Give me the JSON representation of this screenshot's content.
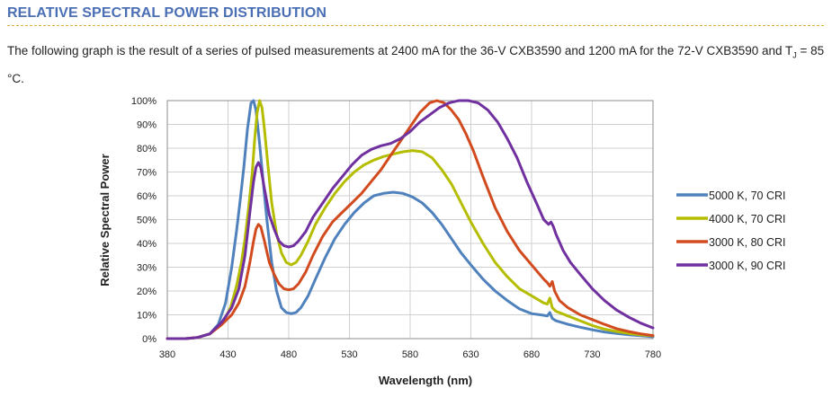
{
  "section": {
    "title": "RELATIVE SPECTRAL POWER DISTRIBUTION",
    "intro_main": "The following graph is the result of a series of pulsed measurements at 2400 mA for the 36-V CXB3590 and 1200 mA for the 72-V CXB3590 and T",
    "intro_sub": "J",
    "intro_end": " = 85 °C."
  },
  "colors": {
    "title": "#4a6fb5",
    "rule": "#d9b43a"
  },
  "chart_data": {
    "type": "line",
    "xlabel": "Wavelength (nm)",
    "ylabel": "Relative Spectral Power",
    "xlim": [
      380,
      780
    ],
    "ylim": [
      0,
      100
    ],
    "xticks": [
      380,
      430,
      480,
      530,
      580,
      630,
      680,
      730,
      780
    ],
    "yticks": [
      0,
      10,
      20,
      30,
      40,
      50,
      60,
      70,
      80,
      90,
      100
    ],
    "yticks_suffix": "%",
    "grid": true,
    "legend_position": "right",
    "series": [
      {
        "name": "5000 K, 70 CRI",
        "color": "#4f81bd",
        "points": [
          [
            380,
            0
          ],
          [
            395,
            0
          ],
          [
            405,
            0.5
          ],
          [
            415,
            2
          ],
          [
            422,
            6
          ],
          [
            428,
            15
          ],
          [
            433,
            30
          ],
          [
            437,
            45
          ],
          [
            440,
            58
          ],
          [
            443,
            72
          ],
          [
            446,
            88
          ],
          [
            449,
            99
          ],
          [
            451,
            100
          ],
          [
            453,
            96
          ],
          [
            456,
            82
          ],
          [
            459,
            66
          ],
          [
            462,
            50
          ],
          [
            466,
            32
          ],
          [
            470,
            20
          ],
          [
            474,
            13
          ],
          [
            478,
            11
          ],
          [
            482,
            10.5
          ],
          [
            486,
            11
          ],
          [
            490,
            13
          ],
          [
            496,
            18
          ],
          [
            502,
            25
          ],
          [
            510,
            34
          ],
          [
            518,
            42
          ],
          [
            526,
            48
          ],
          [
            534,
            53
          ],
          [
            542,
            57
          ],
          [
            550,
            60
          ],
          [
            558,
            61
          ],
          [
            566,
            61.5
          ],
          [
            574,
            61
          ],
          [
            582,
            59.5
          ],
          [
            590,
            57
          ],
          [
            598,
            53
          ],
          [
            606,
            48
          ],
          [
            614,
            42
          ],
          [
            622,
            36
          ],
          [
            630,
            31
          ],
          [
            640,
            25
          ],
          [
            650,
            20
          ],
          [
            660,
            16
          ],
          [
            670,
            12.5
          ],
          [
            680,
            10.5
          ],
          [
            690,
            9.8
          ],
          [
            693,
            9.5
          ],
          [
            695,
            11
          ],
          [
            697,
            8.5
          ],
          [
            700,
            7.5
          ],
          [
            710,
            6
          ],
          [
            720,
            4.8
          ],
          [
            730,
            3.7
          ],
          [
            740,
            2.8
          ],
          [
            750,
            2.2
          ],
          [
            760,
            1.6
          ],
          [
            770,
            1.2
          ],
          [
            780,
            0.8
          ]
        ]
      },
      {
        "name": "4000 K, 70 CRI",
        "color": "#b5bd00",
        "points": [
          [
            380,
            0
          ],
          [
            395,
            0
          ],
          [
            405,
            0.5
          ],
          [
            415,
            2
          ],
          [
            425,
            6
          ],
          [
            432,
            13
          ],
          [
            437,
            22
          ],
          [
            441,
            32
          ],
          [
            444,
            42
          ],
          [
            447,
            55
          ],
          [
            450,
            70
          ],
          [
            452,
            84
          ],
          [
            454,
            95
          ],
          [
            456,
            100
          ],
          [
            458,
            97
          ],
          [
            460,
            88
          ],
          [
            463,
            72
          ],
          [
            466,
            57
          ],
          [
            470,
            44
          ],
          [
            474,
            36
          ],
          [
            478,
            32
          ],
          [
            482,
            31
          ],
          [
            486,
            32
          ],
          [
            490,
            35
          ],
          [
            496,
            41
          ],
          [
            502,
            48
          ],
          [
            510,
            55
          ],
          [
            518,
            61
          ],
          [
            526,
            66
          ],
          [
            534,
            70
          ],
          [
            542,
            73
          ],
          [
            550,
            75
          ],
          [
            558,
            76.5
          ],
          [
            566,
            77.5
          ],
          [
            574,
            78.5
          ],
          [
            582,
            79
          ],
          [
            590,
            78.5
          ],
          [
            598,
            76
          ],
          [
            606,
            71
          ],
          [
            614,
            65
          ],
          [
            622,
            57
          ],
          [
            630,
            49
          ],
          [
            640,
            40
          ],
          [
            650,
            32
          ],
          [
            660,
            26
          ],
          [
            670,
            21
          ],
          [
            680,
            18
          ],
          [
            690,
            15
          ],
          [
            693,
            14.5
          ],
          [
            695,
            17
          ],
          [
            697,
            13
          ],
          [
            700,
            11.5
          ],
          [
            710,
            9.5
          ],
          [
            720,
            7.5
          ],
          [
            730,
            5.5
          ],
          [
            740,
            4
          ],
          [
            750,
            3
          ],
          [
            760,
            2.2
          ],
          [
            770,
            1.6
          ],
          [
            780,
            1.2
          ]
        ]
      },
      {
        "name": "3000 K, 80 CRI",
        "color": "#d14b1e",
        "points": [
          [
            380,
            0
          ],
          [
            395,
            0
          ],
          [
            405,
            0.5
          ],
          [
            415,
            2
          ],
          [
            425,
            6
          ],
          [
            433,
            10
          ],
          [
            439,
            15
          ],
          [
            444,
            22
          ],
          [
            448,
            32
          ],
          [
            451,
            41
          ],
          [
            453,
            46
          ],
          [
            455,
            48
          ],
          [
            457,
            47
          ],
          [
            460,
            41
          ],
          [
            464,
            32
          ],
          [
            468,
            27
          ],
          [
            472,
            23
          ],
          [
            476,
            21
          ],
          [
            480,
            20.5
          ],
          [
            484,
            21
          ],
          [
            488,
            23
          ],
          [
            494,
            28
          ],
          [
            500,
            35
          ],
          [
            508,
            43
          ],
          [
            516,
            49
          ],
          [
            524,
            53
          ],
          [
            532,
            57
          ],
          [
            540,
            61
          ],
          [
            548,
            66
          ],
          [
            556,
            71
          ],
          [
            564,
            77
          ],
          [
            572,
            83
          ],
          [
            580,
            89
          ],
          [
            588,
            95
          ],
          [
            596,
            99
          ],
          [
            602,
            100
          ],
          [
            608,
            99
          ],
          [
            614,
            96
          ],
          [
            620,
            92
          ],
          [
            626,
            86
          ],
          [
            632,
            79
          ],
          [
            640,
            68
          ],
          [
            650,
            55
          ],
          [
            660,
            45
          ],
          [
            670,
            37
          ],
          [
            680,
            31
          ],
          [
            690,
            25
          ],
          [
            693,
            23.5
          ],
          [
            695,
            22
          ],
          [
            697,
            24
          ],
          [
            699,
            20
          ],
          [
            703,
            16
          ],
          [
            710,
            13
          ],
          [
            720,
            10
          ],
          [
            730,
            8
          ],
          [
            740,
            6
          ],
          [
            750,
            4.2
          ],
          [
            760,
            3
          ],
          [
            770,
            2
          ],
          [
            780,
            1.3
          ]
        ]
      },
      {
        "name": "3000 K, 90 CRI",
        "color": "#7030a0",
        "points": [
          [
            380,
            0
          ],
          [
            395,
            0
          ],
          [
            405,
            0.5
          ],
          [
            415,
            2
          ],
          [
            425,
            7
          ],
          [
            433,
            13
          ],
          [
            439,
            21
          ],
          [
            444,
            35
          ],
          [
            448,
            53
          ],
          [
            451,
            66
          ],
          [
            453,
            72
          ],
          [
            455,
            74
          ],
          [
            457,
            72
          ],
          [
            460,
            63
          ],
          [
            464,
            52
          ],
          [
            468,
            46
          ],
          [
            472,
            41
          ],
          [
            476,
            39
          ],
          [
            480,
            38.5
          ],
          [
            484,
            39
          ],
          [
            488,
            41
          ],
          [
            494,
            45
          ],
          [
            500,
            51
          ],
          [
            508,
            57
          ],
          [
            516,
            63
          ],
          [
            524,
            68
          ],
          [
            532,
            73
          ],
          [
            540,
            77
          ],
          [
            548,
            79.5
          ],
          [
            556,
            81
          ],
          [
            564,
            82
          ],
          [
            572,
            84
          ],
          [
            580,
            87
          ],
          [
            588,
            91
          ],
          [
            596,
            94
          ],
          [
            604,
            97
          ],
          [
            612,
            99
          ],
          [
            620,
            100
          ],
          [
            628,
            100
          ],
          [
            636,
            99
          ],
          [
            644,
            96
          ],
          [
            652,
            91
          ],
          [
            660,
            84
          ],
          [
            668,
            76
          ],
          [
            676,
            66
          ],
          [
            684,
            57
          ],
          [
            690,
            50
          ],
          [
            694,
            48
          ],
          [
            696,
            49
          ],
          [
            698,
            47
          ],
          [
            700,
            44
          ],
          [
            706,
            37
          ],
          [
            712,
            32
          ],
          [
            720,
            27
          ],
          [
            730,
            21
          ],
          [
            740,
            16
          ],
          [
            750,
            12
          ],
          [
            760,
            9
          ],
          [
            770,
            6.5
          ],
          [
            780,
            4.5
          ]
        ]
      }
    ]
  }
}
